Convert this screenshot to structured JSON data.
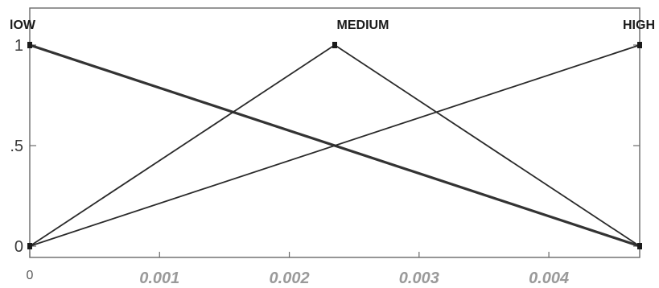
{
  "chart_data": {
    "type": "line",
    "title": "",
    "xlabel": "",
    "ylabel": "",
    "xlim": [
      0,
      0.0047
    ],
    "ylim": [
      0,
      1
    ],
    "x_ticks": [
      {
        "value": 0,
        "label": "0"
      },
      {
        "value": 0.001,
        "label": "0.001"
      },
      {
        "value": 0.002,
        "label": "0.002"
      },
      {
        "value": 0.003,
        "label": "0.003"
      },
      {
        "value": 0.004,
        "label": "0.004"
      }
    ],
    "y_ticks": [
      {
        "value": 0,
        "label": "0"
      },
      {
        "value": 0.5,
        "label": ".5"
      },
      {
        "value": 1,
        "label": "1"
      }
    ],
    "grid": false,
    "legend": "none",
    "series": [
      {
        "name": "lOW",
        "label_position": "top-left",
        "points": [
          [
            0,
            1
          ],
          [
            0.0047,
            0
          ]
        ]
      },
      {
        "name": "MEDIUM",
        "label_position": "top-center",
        "points": [
          [
            0,
            0
          ],
          [
            0.00235,
            1
          ],
          [
            0.0047,
            0
          ]
        ]
      },
      {
        "name": "HIGH",
        "label_position": "top-right",
        "points": [
          [
            0,
            0
          ],
          [
            0.0047,
            1
          ]
        ]
      }
    ],
    "colors": {
      "line": "#2a2a2a",
      "frame": "#6a6a6a",
      "x_tick_text": "#9a9a9a"
    }
  }
}
